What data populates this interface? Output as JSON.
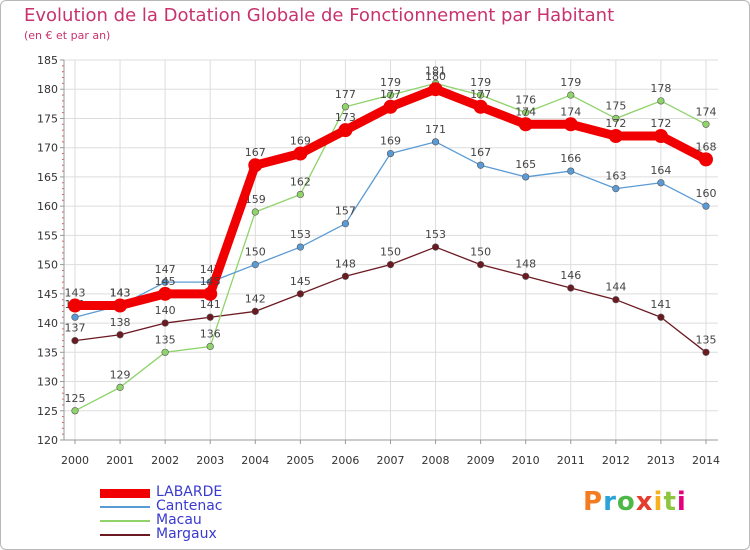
{
  "header": {
    "title": "Evolution de la Dotation Globale de Fonctionnement par Habitant",
    "subtitle": "(en € et par an)"
  },
  "logo": {
    "text": "Proxiti",
    "colors": [
      "#f47c20",
      "#2ba3d8",
      "#4db848",
      "#e63c2e",
      "#f5b21f",
      "#8cc63f",
      "#e4007c"
    ]
  },
  "chart_data": {
    "type": "line",
    "title": "Evolution de la Dotation Globale de Fonctionnement par Habitant",
    "subtitle": "(en € et par an)",
    "x": [
      "2000",
      "2001",
      "2002",
      "2003",
      "2004",
      "2005",
      "2006",
      "2007",
      "2008",
      "2009",
      "2010",
      "2011",
      "2012",
      "2013",
      "2014"
    ],
    "ylim": [
      120,
      185
    ],
    "yticks": [
      120,
      125,
      130,
      135,
      140,
      145,
      150,
      155,
      160,
      165,
      170,
      175,
      180,
      185
    ],
    "grid": true,
    "legend_position": "bottom-left",
    "series": [
      {
        "name": "Margaux",
        "color": "#6b1a22",
        "values": [
          137,
          138,
          140,
          141,
          142,
          145,
          148,
          150,
          153,
          150,
          148,
          146,
          144,
          141,
          135
        ]
      },
      {
        "name": "Macau",
        "color": "#8fd36a",
        "values": [
          125,
          129,
          135,
          136,
          159,
          162,
          177,
          179,
          181,
          179,
          176,
          179,
          175,
          178,
          174
        ]
      },
      {
        "name": "Cantenac",
        "color": "#5b9bd5",
        "values": [
          141,
          143,
          147,
          147,
          150,
          153,
          157,
          169,
          171,
          167,
          165,
          166,
          163,
          164,
          160
        ]
      },
      {
        "name": "LABARDE",
        "color": "#f00000",
        "values": [
          143,
          143,
          145,
          145,
          167,
          169,
          173,
          177,
          180,
          177,
          174,
          174,
          172,
          172,
          168
        ]
      }
    ]
  }
}
